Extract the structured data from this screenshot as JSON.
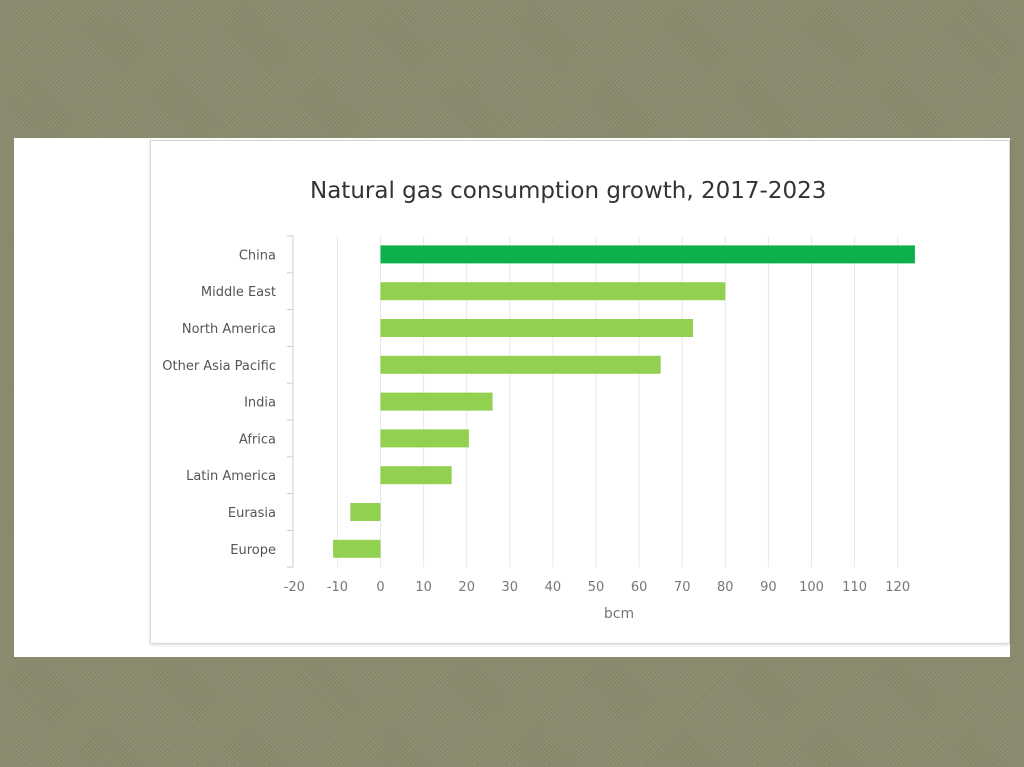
{
  "chart_data": {
    "type": "bar",
    "orientation": "horizontal",
    "title": "Natural gas consumption growth, 2017-2023",
    "xlabel": "bcm",
    "ylabel": "",
    "categories": [
      "China",
      "Middle East",
      "North America",
      "Other Asia Pacific",
      "India",
      "Africa",
      "Latin America",
      "Eurasia",
      "Europe"
    ],
    "values": [
      124,
      80,
      72.5,
      65,
      26,
      20.5,
      16.5,
      -7,
      -11
    ],
    "highlight_color": "#0db14b",
    "bar_color": "#92d050",
    "xlim": [
      -20,
      130
    ],
    "xticks": [
      -20,
      -10,
      0,
      10,
      20,
      30,
      40,
      50,
      60,
      70,
      80,
      90,
      100,
      110,
      120
    ],
    "grid": true,
    "legend": "none"
  }
}
